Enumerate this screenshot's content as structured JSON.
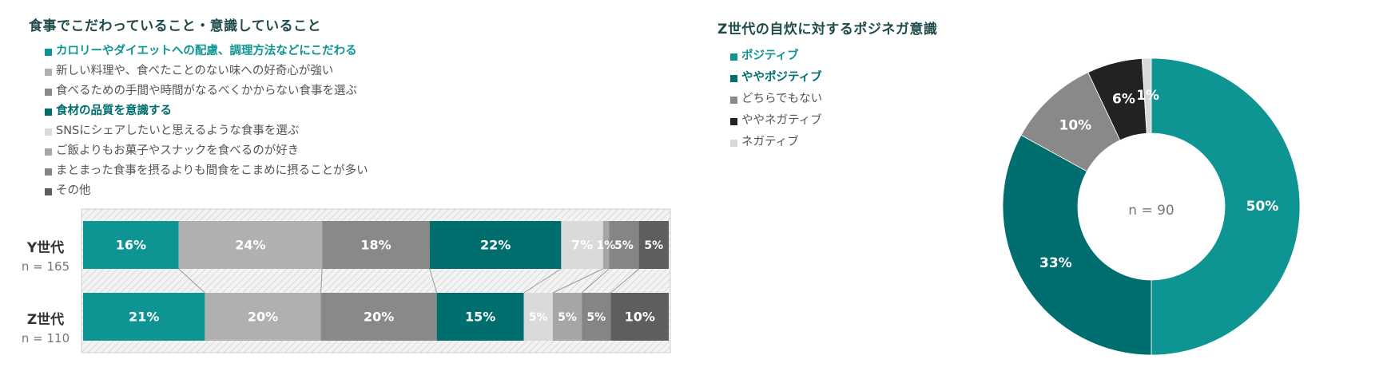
{
  "left": {
    "title": "食事でこだわっていること・意識していること",
    "categories": [
      {
        "name": "Y世代",
        "n": "n = 165"
      },
      {
        "name": "Z世代",
        "n": "n = 110"
      }
    ]
  },
  "right": {
    "title": "Z世代の自炊に対するポジネガ意識",
    "center_label": "n = 90"
  },
  "chart_data": [
    {
      "type": "bar",
      "stacked": true,
      "orientation": "horizontal",
      "title": "食事でこだわっていること・意識していること",
      "categories": [
        "Y世代",
        "Z世代"
      ],
      "sample_sizes": [
        "n = 165",
        "n = 110"
      ],
      "xlim": [
        0,
        100
      ],
      "legend_position": "top-left",
      "series": [
        {
          "name": "カロリーやダイエットへの配慮、調理方法などにこだわる",
          "values": [
            16,
            21
          ],
          "color": "#0f9494",
          "emphasis": true,
          "labels": [
            "16%",
            "21%"
          ]
        },
        {
          "name": "新しい料理や、食べたことのない味への好奇心が強い",
          "values": [
            24,
            20
          ],
          "color": "#b0b0b0",
          "emphasis": false,
          "labels": [
            "24%",
            "20%"
          ]
        },
        {
          "name": "食べるための手間や時間がなるべくかからない食事を選ぶ",
          "values": [
            18,
            20
          ],
          "color": "#898989",
          "emphasis": false,
          "labels": [
            "18%",
            "20%"
          ]
        },
        {
          "name": "食材の品質を意識する",
          "values": [
            22,
            15
          ],
          "color": "#006e6e",
          "emphasis": true,
          "labels": [
            "22%",
            "15%"
          ]
        },
        {
          "name": "SNSにシェアしたいと思えるような食事を選ぶ",
          "values": [
            7,
            5
          ],
          "color": "#dadada",
          "emphasis": false,
          "labels": [
            "7%",
            "5%"
          ]
        },
        {
          "name": "ご飯よりもお菓子やスナックを食べるのが好き",
          "values": [
            1,
            5
          ],
          "color": "#a6a6a6",
          "emphasis": false,
          "labels": [
            "1%",
            "5%"
          ]
        },
        {
          "name": "まとまった食事を摂るよりも間食をこまめに摂ることが多い",
          "values": [
            5,
            5
          ],
          "color": "#858585",
          "emphasis": false,
          "labels": [
            "5%",
            "5%"
          ]
        },
        {
          "name": "その他",
          "values": [
            5,
            10
          ],
          "color": "#5e5e5e",
          "emphasis": false,
          "labels": [
            "5%",
            "10%"
          ]
        }
      ]
    },
    {
      "type": "pie",
      "donut": true,
      "title": "Z世代の自炊に対するポジネガ意識",
      "center_label": "n = 90",
      "legend_position": "top-left",
      "series": [
        {
          "name": "ポジティブ",
          "value": 50,
          "label": "50%",
          "color": "#0f9494",
          "emphasis": true
        },
        {
          "name": "ややポジティブ",
          "value": 33,
          "label": "33%",
          "color": "#006e6e",
          "emphasis": true
        },
        {
          "name": "どちらでもない",
          "value": 10,
          "label": "10%",
          "color": "#898989",
          "emphasis": false
        },
        {
          "name": "ややネガティブ",
          "value": 6,
          "label": "6%",
          "color": "#222222",
          "emphasis": false
        },
        {
          "name": "ネガティブ",
          "value": 1,
          "label": "1%",
          "color": "#d9d9d9",
          "emphasis": false
        }
      ]
    }
  ]
}
